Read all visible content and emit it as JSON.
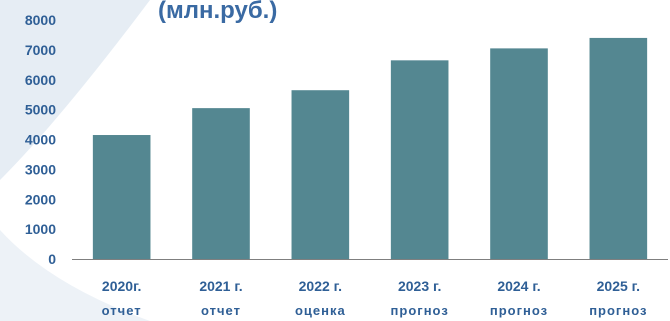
{
  "chart_data": {
    "type": "bar",
    "title": "(млн.руб.)",
    "categories": [
      "2020г.",
      "2021 г.",
      "2022 г.",
      "2023 г.",
      "2024 г.",
      "2025 г."
    ],
    "category_sublabels": [
      "отчет",
      "отчет",
      "оценка",
      "прогноз",
      "прогноз",
      "прогноз"
    ],
    "values": [
      4150,
      5050,
      5650,
      6650,
      7050,
      7400
    ],
    "ylim": [
      0,
      8000
    ],
    "yticks": [
      0,
      1000,
      2000,
      3000,
      4000,
      5000,
      6000,
      7000,
      8000
    ],
    "xlabel": "",
    "ylabel": "",
    "grid": false,
    "legend": "none",
    "colors": {
      "bar": "#548791",
      "axis": "#7f7f7f",
      "text": "#2f5f96",
      "title": "#3a6aa3",
      "background_accent": "#e6edf4"
    }
  }
}
